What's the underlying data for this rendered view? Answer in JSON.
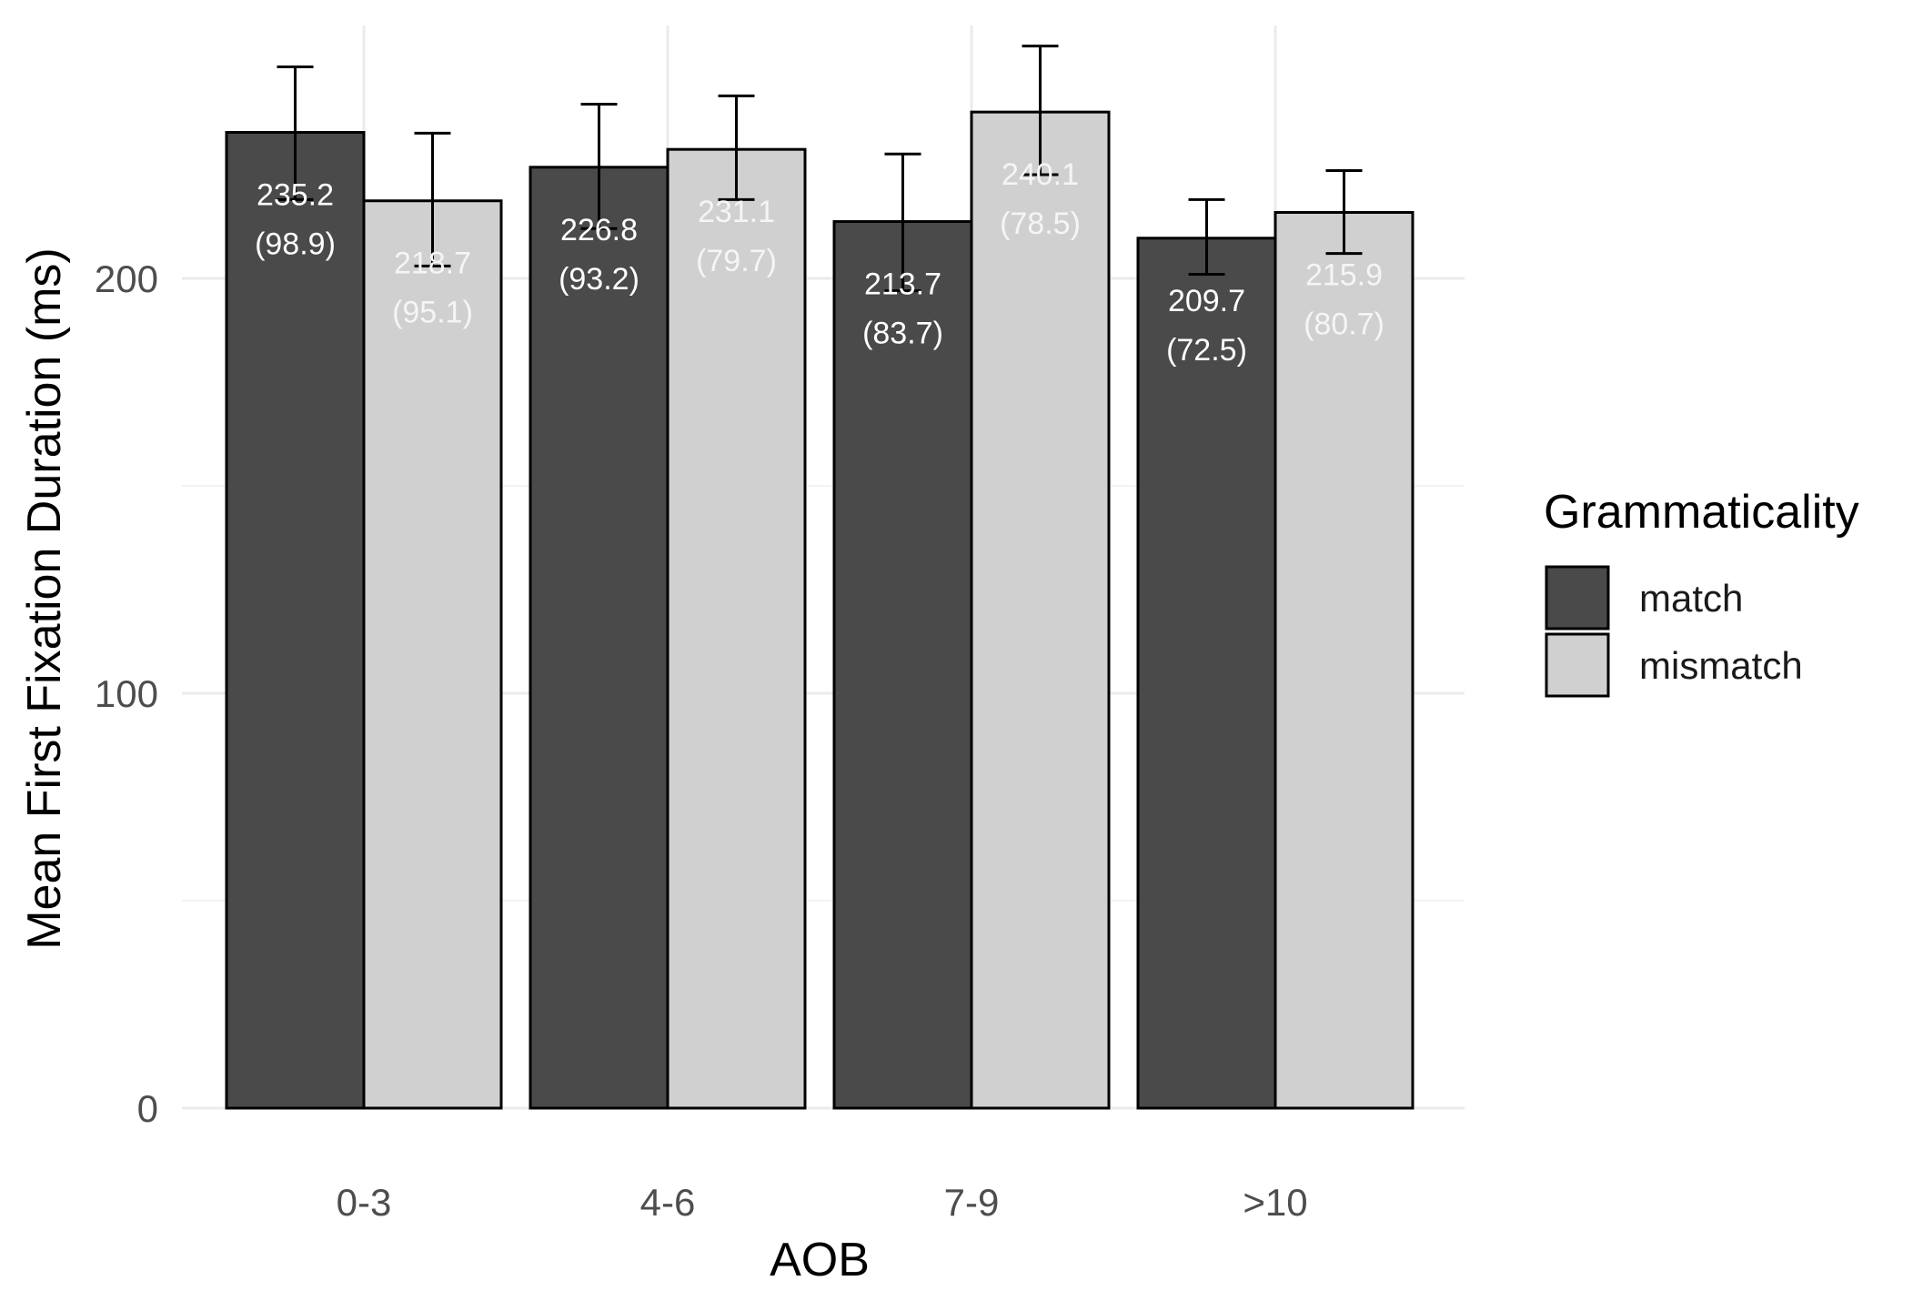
{
  "chart_data": {
    "type": "bar",
    "title": "",
    "xlabel": "AOB",
    "ylabel": "Mean First Fixation Duration (ms)",
    "categories": [
      "0-3",
      "4-6",
      "7-9",
      ">10"
    ],
    "ylim": [
      0,
      250
    ],
    "y_ticks": [
      0,
      100,
      200
    ],
    "grid": true,
    "legend": {
      "title": "Grammaticality",
      "position": "right"
    },
    "series": [
      {
        "name": "match",
        "color": "#4a4a4a",
        "label_color": "#ffffff",
        "values": [
          235.2,
          226.8,
          213.7,
          209.7
        ],
        "sd": [
          98.9,
          93.2,
          83.7,
          72.5
        ],
        "err_low": [
          219,
          212,
          197,
          201
        ],
        "err_high": [
          251,
          242,
          230,
          219
        ],
        "labels": [
          "235.2",
          "226.8",
          "213.7",
          "209.7"
        ],
        "sd_labels": [
          "(98.9)",
          "(93.2)",
          "(83.7)",
          "(72.5)"
        ]
      },
      {
        "name": "mismatch",
        "color": "#d0d0d0",
        "label_color": "#f5f5f5",
        "values": [
          218.7,
          231.1,
          240.1,
          215.9
        ],
        "sd": [
          95.1,
          79.7,
          78.5,
          80.7
        ],
        "err_low": [
          203,
          219,
          225,
          206
        ],
        "err_high": [
          235,
          244,
          256,
          226
        ],
        "labels": [
          "218.7",
          "231.1",
          "240.1",
          "215.9"
        ],
        "sd_labels": [
          "(95.1)",
          "(79.7)",
          "(78.5)",
          "(80.7)"
        ]
      }
    ]
  }
}
